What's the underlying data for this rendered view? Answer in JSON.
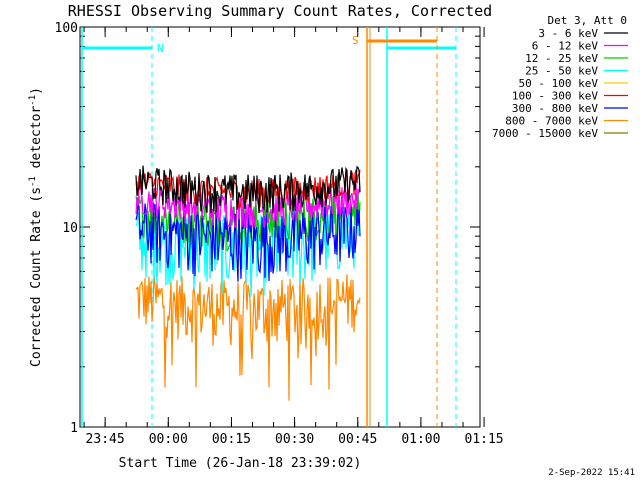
{
  "chart_data": {
    "type": "line",
    "title": "RHESSI Observing Summary Count Rates, Corrected",
    "xlabel": "Start Time (26-Jan-18 23:39:02)",
    "ylabel_main": "Corrected Count Rate (s",
    "ylabel_sup1": "-1",
    "ylabel_mid": " detector",
    "ylabel_sup2": "-1",
    "ylabel_end": ")",
    "yscale": "log",
    "ylim": [
      1,
      100
    ],
    "y_ticks": [
      "100",
      "10",
      "1"
    ],
    "x_ticks": [
      "23:45",
      "00:00",
      "00:15",
      "00:30",
      "00:45",
      "01:00",
      "01:15"
    ],
    "legend_header": "Det 3, Att 0",
    "series": [
      {
        "name": "3 - 6 keV",
        "color": "#000000",
        "base": 17,
        "spread": 3.5
      },
      {
        "name": "6 - 12 keV",
        "color": "#ff00ff",
        "base": 14,
        "spread": 2.5
      },
      {
        "name": "12 - 25 keV",
        "color": "#00cc00",
        "base": 12,
        "spread": 3
      },
      {
        "name": "25 - 50 keV",
        "color": "#00ffff",
        "base": 9,
        "spread": 3.5
      },
      {
        "name": "50 - 100 keV",
        "color": "#ffcc00",
        "base": 0,
        "spread": 0
      },
      {
        "name": "100 - 300 keV",
        "color": "#ff0000",
        "base": 17,
        "spread": 2.5
      },
      {
        "name": "300 - 800 keV",
        "color": "#0000ff",
        "base": 10,
        "spread": 3.5
      },
      {
        "name": "800 - 7000 keV",
        "color": "#ff8800",
        "base": 4.5,
        "spread": 1.5
      },
      {
        "name": "7000 - 15000 keV",
        "color": "#808000",
        "base": 0,
        "spread": 0
      }
    ],
    "flags": [
      {
        "label": "N",
        "color": "#00ffff"
      },
      {
        "label": "S",
        "color": "#ff8800"
      }
    ]
  },
  "footer": {
    "date": "2-Sep-2022 15:41"
  }
}
